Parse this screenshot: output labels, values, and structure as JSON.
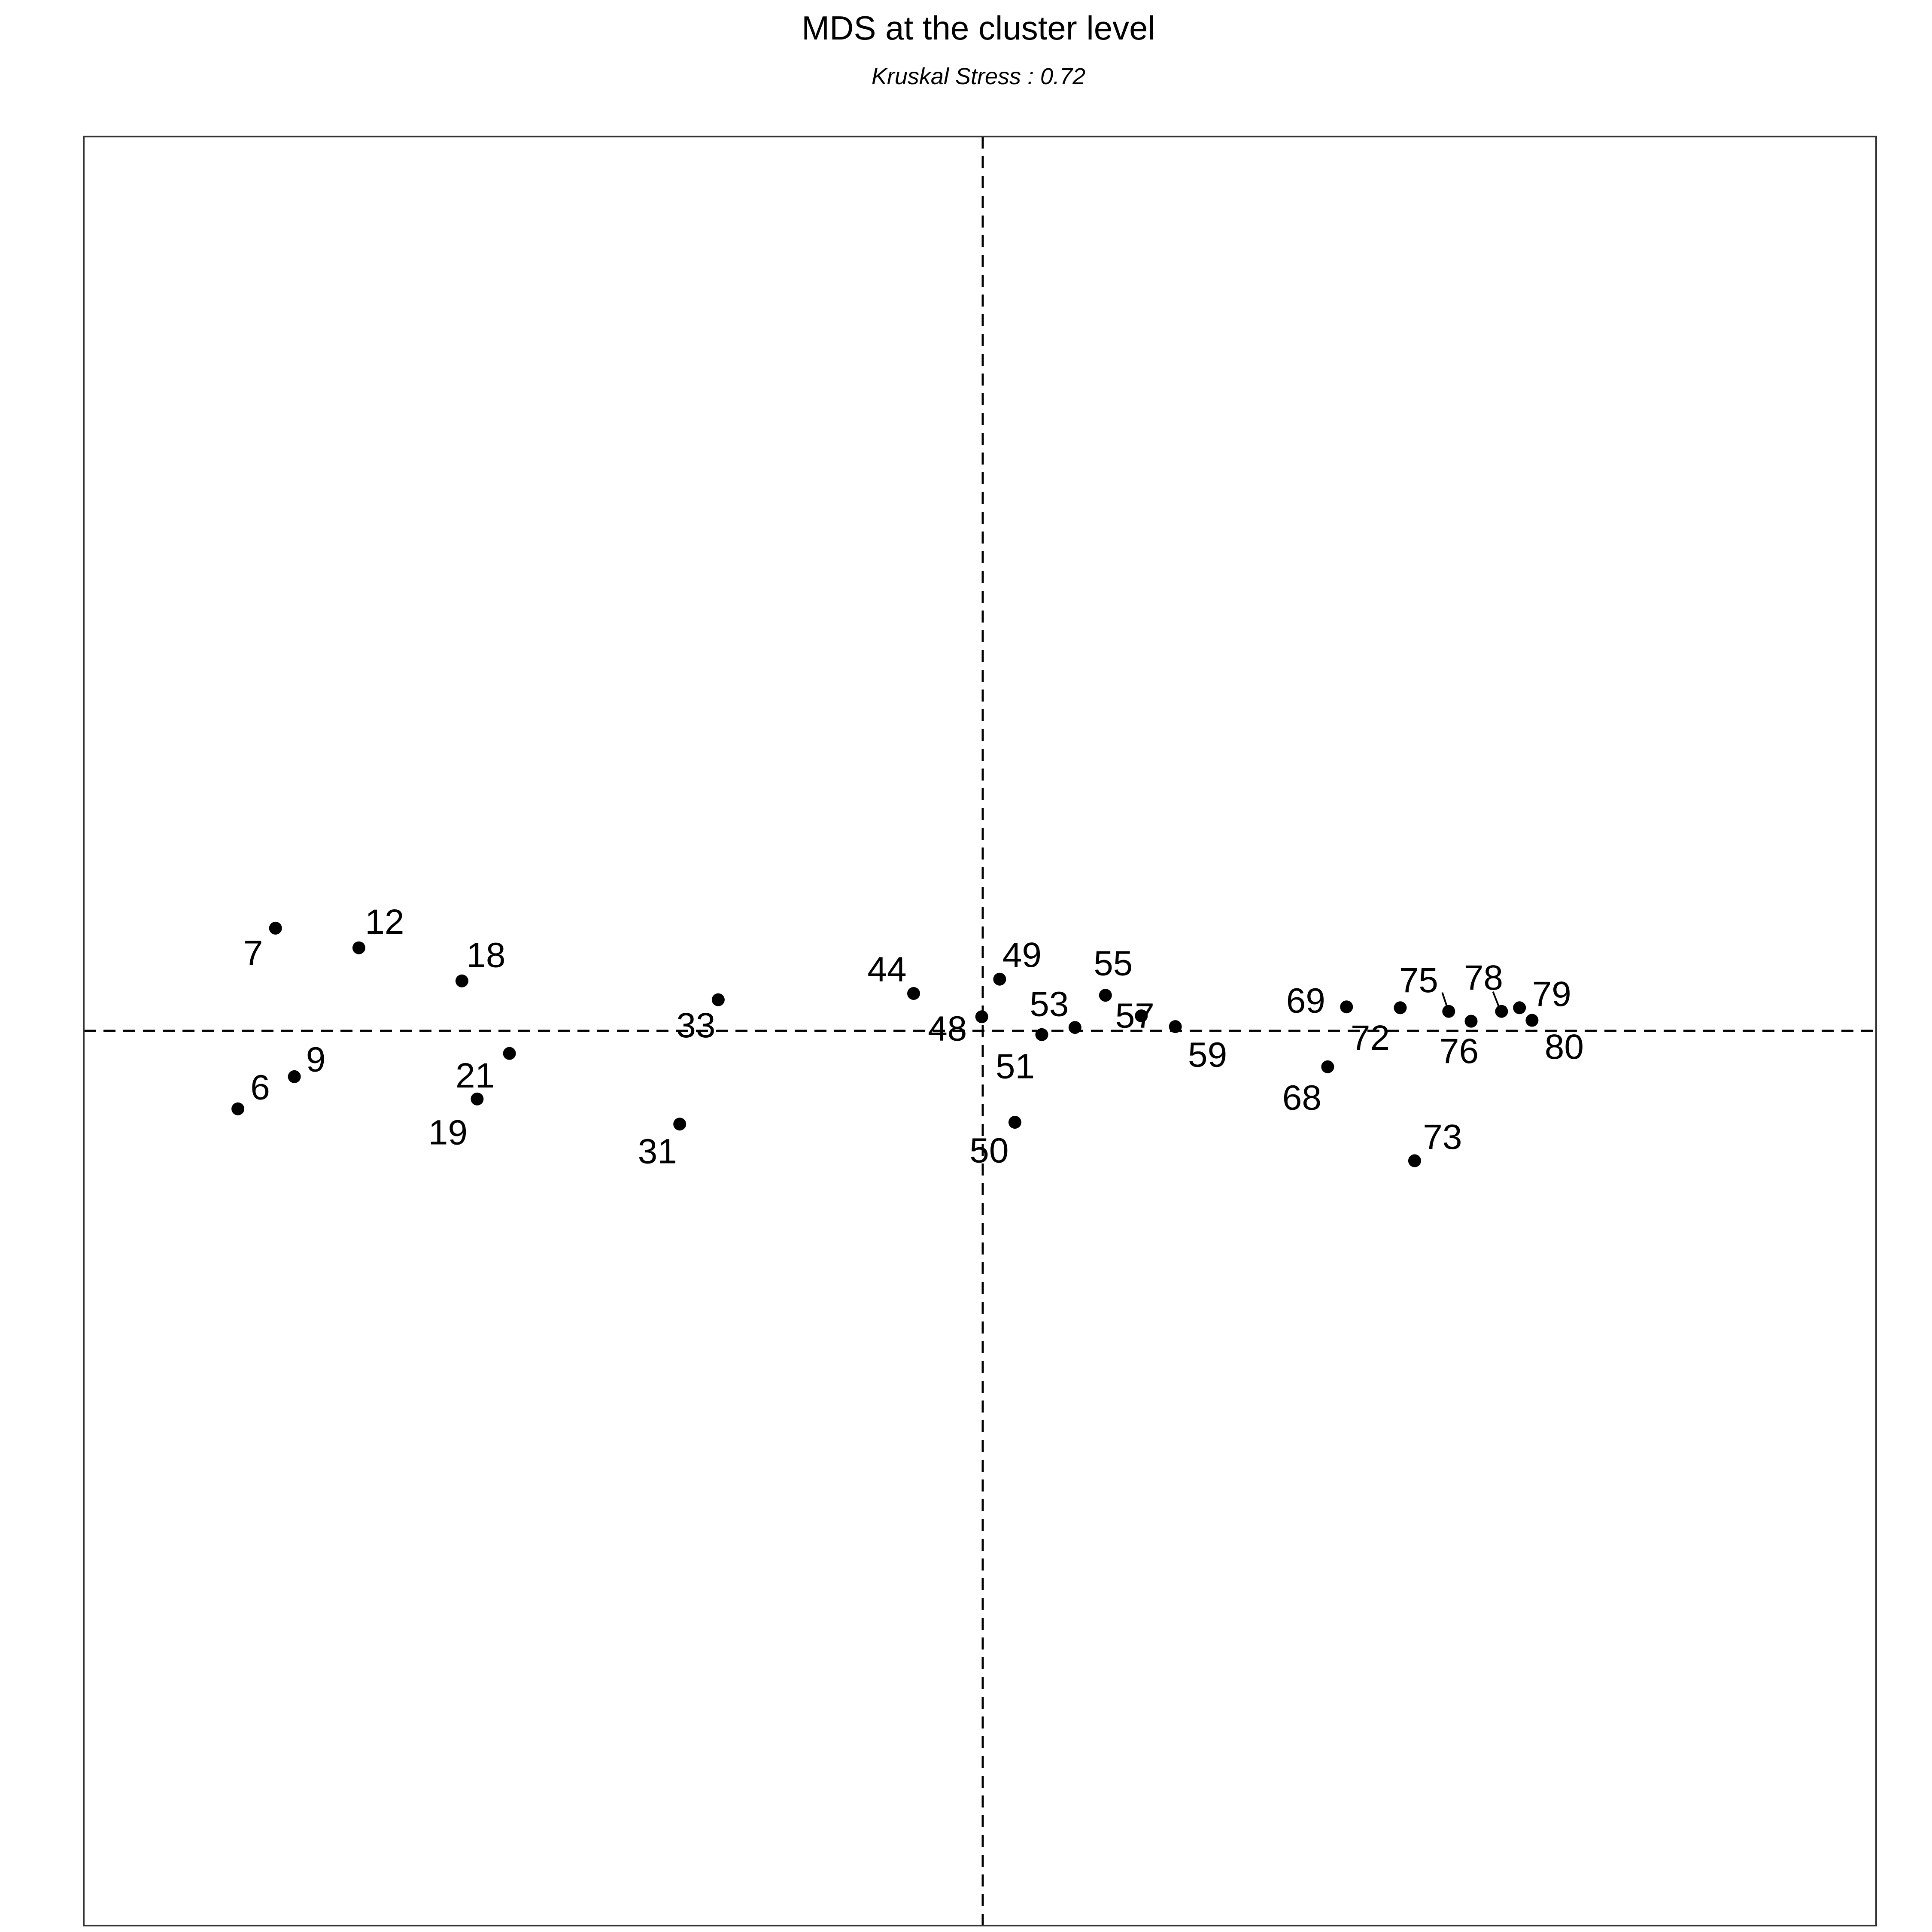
{
  "chart_data": {
    "type": "scatter",
    "title": "MDS at the cluster level",
    "subtitle": "Kruskal Stress : 0.72",
    "xlabel": "",
    "ylabel": "",
    "xlim": [
      -1,
      1
    ],
    "ylim": [
      -1,
      1
    ],
    "grid": false,
    "reference_lines": {
      "x": 0,
      "y": 0,
      "style": "dashed"
    },
    "points": [
      {
        "label": "6",
        "x": -0.828,
        "y": -0.087
      },
      {
        "label": "7",
        "x": -0.786,
        "y": 0.115
      },
      {
        "label": "9",
        "x": -0.765,
        "y": -0.051
      },
      {
        "label": "12",
        "x": -0.693,
        "y": 0.093
      },
      {
        "label": "18",
        "x": -0.578,
        "y": 0.056
      },
      {
        "label": "19",
        "x": -0.561,
        "y": -0.076
      },
      {
        "label": "21",
        "x": -0.525,
        "y": -0.025
      },
      {
        "label": "31",
        "x": -0.335,
        "y": -0.104
      },
      {
        "label": "33",
        "x": -0.292,
        "y": 0.035
      },
      {
        "label": "44",
        "x": -0.074,
        "y": 0.042
      },
      {
        "label": "48",
        "x": 0.002,
        "y": 0.016
      },
      {
        "label": "49",
        "x": 0.022,
        "y": 0.058
      },
      {
        "label": "50",
        "x": 0.039,
        "y": -0.102
      },
      {
        "label": "51",
        "x": 0.069,
        "y": -0.004
      },
      {
        "label": "53",
        "x": 0.106,
        "y": 0.004
      },
      {
        "label": "55",
        "x": 0.14,
        "y": 0.04
      },
      {
        "label": "57",
        "x": 0.18,
        "y": 0.017
      },
      {
        "label": "59",
        "x": 0.218,
        "y": 0.005
      },
      {
        "label": "68",
        "x": 0.388,
        "y": -0.04
      },
      {
        "label": "69",
        "x": 0.409,
        "y": 0.027
      },
      {
        "label": "72",
        "x": 0.469,
        "y": 0.026
      },
      {
        "label": "73",
        "x": 0.485,
        "y": -0.145
      },
      {
        "label": "75",
        "x": 0.523,
        "y": 0.022
      },
      {
        "label": "76",
        "x": 0.548,
        "y": 0.011
      },
      {
        "label": "78",
        "x": 0.582,
        "y": 0.022
      },
      {
        "label": "79",
        "x": 0.602,
        "y": 0.026
      },
      {
        "label": "80",
        "x": 0.616,
        "y": 0.012
      }
    ]
  }
}
